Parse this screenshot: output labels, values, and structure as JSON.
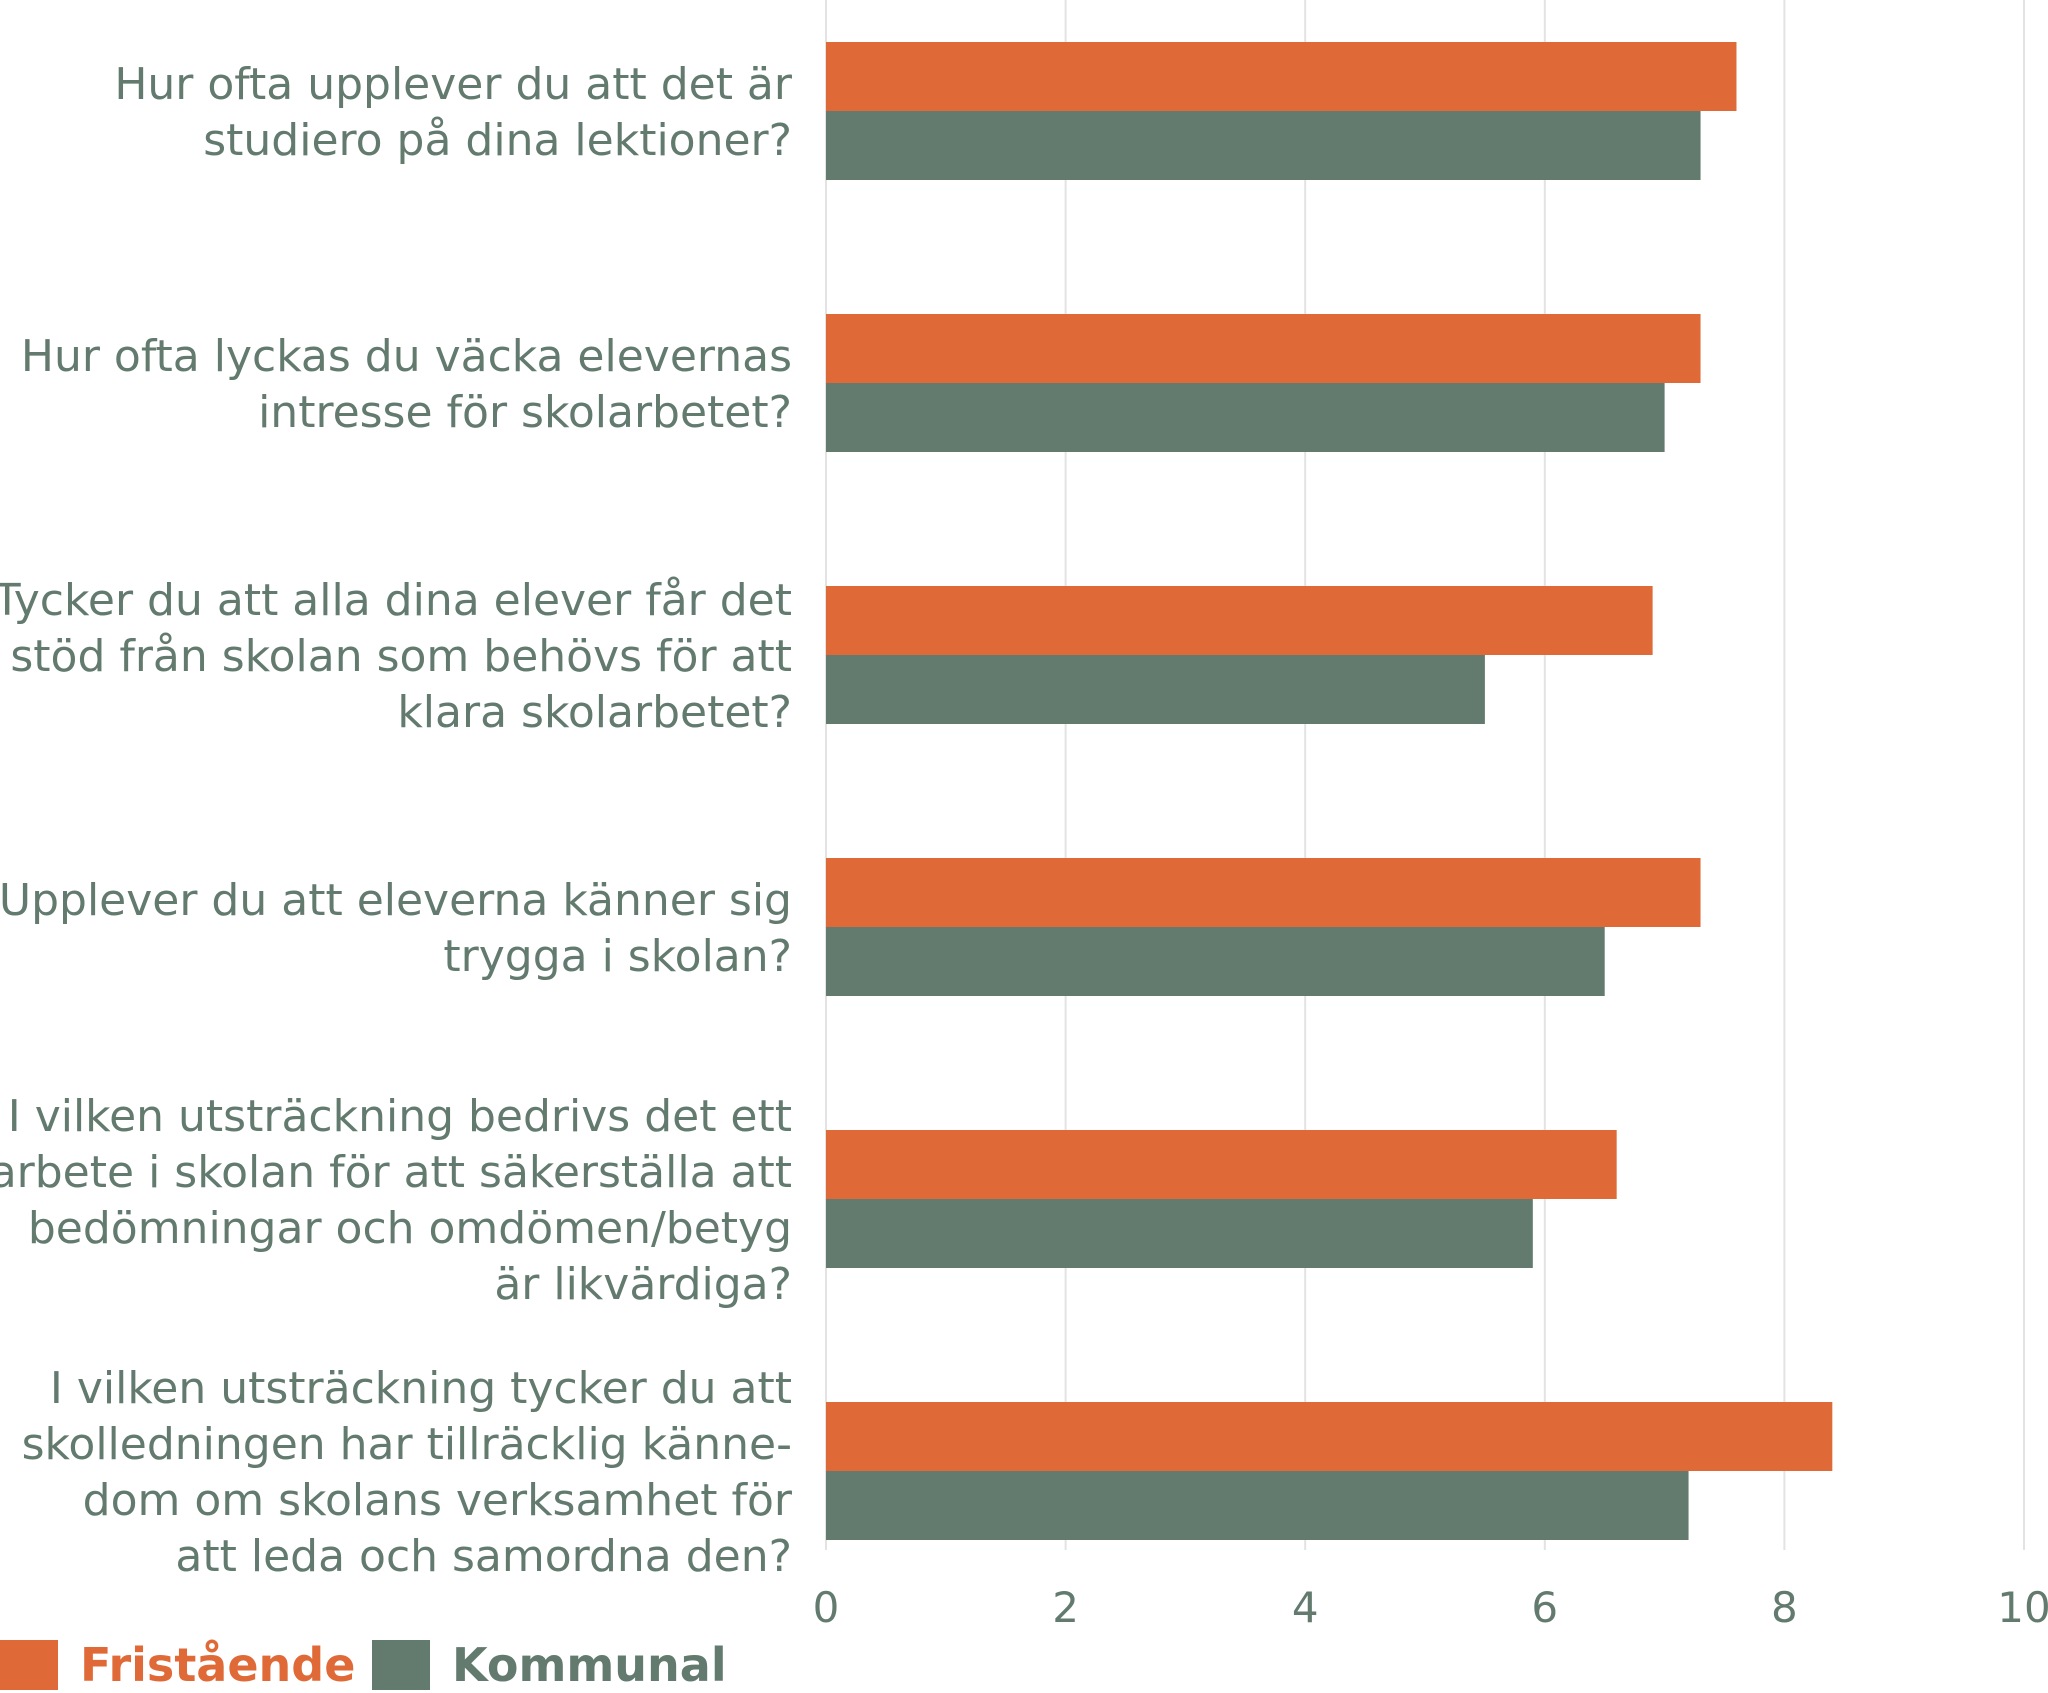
{
  "chart_data": {
    "type": "bar",
    "orientation": "horizontal",
    "categories": [
      [
        "Hur ofta upplever du att det är",
        "studiero på dina lektioner?"
      ],
      [
        "Hur ofta lyckas du väcka elevernas",
        "intresse för skolarbetet?"
      ],
      [
        "Tycker du att alla dina elever får det",
        "stöd från skolan som behövs för att",
        "klara skolarbetet?"
      ],
      [
        "Upplever du att eleverna känner sig",
        "trygga i skolan?"
      ],
      [
        "I vilken utsträckning bedrivs det ett",
        "arbete i skolan för att säkerställa att",
        "bedömningar och omdömen/betyg",
        "är likvärdiga?"
      ],
      [
        "I vilken utsträckning tycker du att",
        "skolledningen har tillräcklig känne-",
        "dom om skolans verksamhet för",
        "att leda och samordna den?"
      ]
    ],
    "series": [
      {
        "name": "Fristående",
        "color": "#e06a37",
        "values": [
          7.6,
          7.3,
          6.9,
          7.3,
          6.6,
          8.4
        ]
      },
      {
        "name": "Kommunal",
        "color": "#637a6f",
        "values": [
          7.3,
          7.0,
          5.5,
          6.5,
          5.9,
          7.2
        ]
      }
    ],
    "xlim": [
      0,
      10
    ],
    "xticks": [
      "0",
      "2",
      "4",
      "6",
      "8",
      "10"
    ],
    "grid": true,
    "legend": "bottom-left"
  }
}
